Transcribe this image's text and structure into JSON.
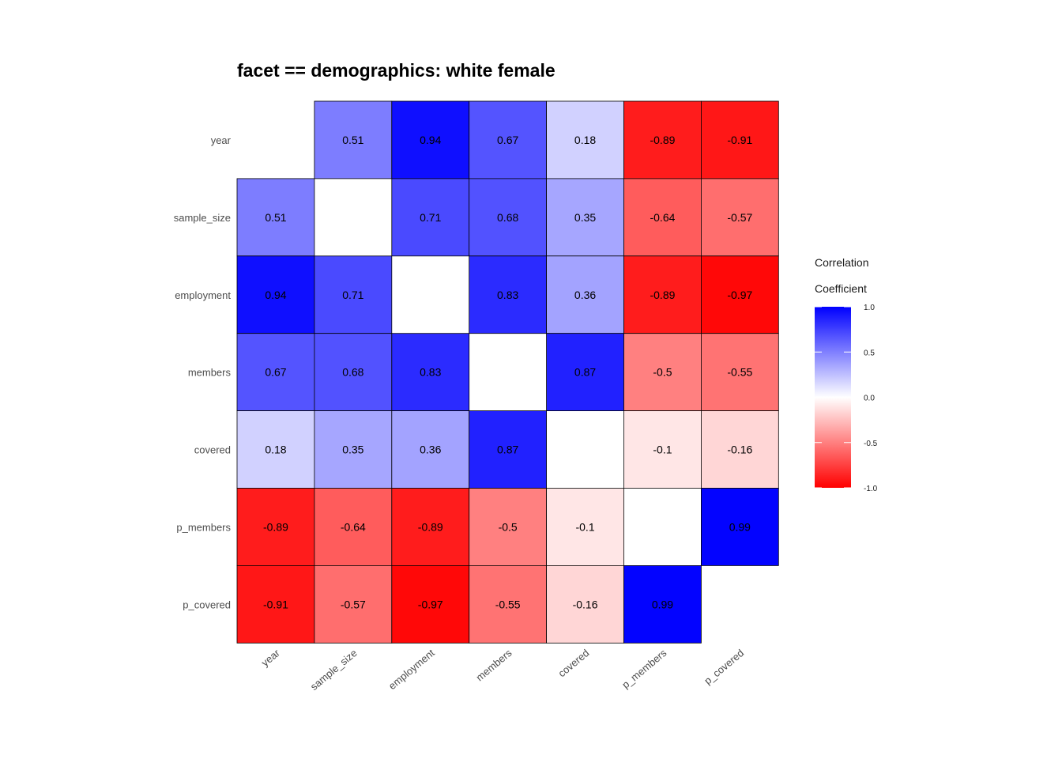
{
  "chart_data": {
    "type": "heatmap",
    "title": "facet == demographics: white female",
    "variables": [
      "year",
      "sample_size",
      "employment",
      "members",
      "covered",
      "p_members",
      "p_covered"
    ],
    "matrix": [
      [
        null,
        0.51,
        0.94,
        0.67,
        0.18,
        -0.89,
        -0.91
      ],
      [
        0.51,
        null,
        0.71,
        0.68,
        0.35,
        -0.64,
        -0.57
      ],
      [
        0.94,
        0.71,
        null,
        0.83,
        0.36,
        -0.89,
        -0.97
      ],
      [
        0.67,
        0.68,
        0.83,
        null,
        0.87,
        -0.5,
        -0.55
      ],
      [
        0.18,
        0.35,
        0.36,
        0.87,
        null,
        -0.1,
        -0.16
      ],
      [
        -0.89,
        -0.64,
        -0.89,
        -0.5,
        -0.1,
        null,
        0.99
      ],
      [
        -0.91,
        -0.57,
        -0.97,
        -0.55,
        -0.16,
        0.99,
        null
      ]
    ],
    "legend": {
      "title_lines": [
        "Correlation",
        "Coefficient"
      ],
      "ticks": [
        1.0,
        0.5,
        0.0,
        -0.5,
        -1.0
      ],
      "tick_labels": [
        "1.0",
        "0.5",
        "0.0",
        "-0.5",
        "-1.0"
      ],
      "range": [
        -1,
        1
      ],
      "low_color": "#ff0000",
      "mid_color": "#ffffff",
      "high_color": "#0000ff",
      "position": "right"
    }
  }
}
